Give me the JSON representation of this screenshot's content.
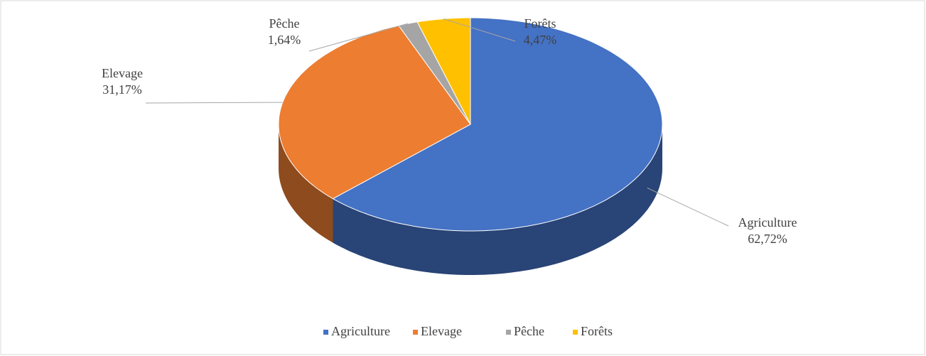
{
  "chart_data": {
    "type": "pie",
    "categories": [
      "Agriculture",
      "Elevage",
      "Pêche",
      "Forêts"
    ],
    "values": [
      62.72,
      31.17,
      1.64,
      4.47
    ],
    "value_labels": [
      "62,72%",
      "31,17%",
      "1,64%",
      "4,47%"
    ],
    "colors": [
      "#4472c4",
      "#ed7d31",
      "#a5a5a5",
      "#ffc000"
    ],
    "legend": "bottom"
  }
}
